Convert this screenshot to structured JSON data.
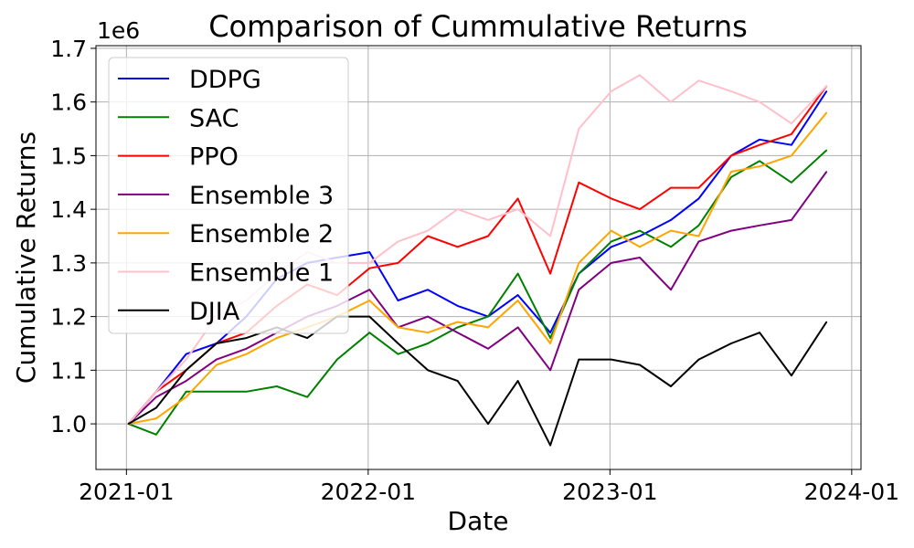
{
  "chart_data": {
    "type": "line",
    "title": "Comparison of Cummulative Returns",
    "xlabel": "Date",
    "ylabel": "Cumulative Returns",
    "y_offset_label": "1e6",
    "x_ticks": [
      "2021-01",
      "2022-01",
      "2023-01",
      "2024-01"
    ],
    "y_ticks": [
      "1.0",
      "1.1",
      "1.2",
      "1.3",
      "1.4",
      "1.5",
      "1.6",
      "1.7"
    ],
    "x_range": [
      "2020-11-16",
      "2024-01-15"
    ],
    "ylim": [
      0.915,
      1.705
    ],
    "y_multiplier": 1000000,
    "grid": true,
    "legend_position": "upper-left",
    "x": [
      "2021-01-04",
      "2021-02-15",
      "2021-04-01",
      "2021-05-17",
      "2021-07-01",
      "2021-08-16",
      "2021-10-01",
      "2021-11-15",
      "2022-01-03",
      "2022-02-15",
      "2022-04-01",
      "2022-05-16",
      "2022-07-01",
      "2022-08-15",
      "2022-10-03",
      "2022-11-15",
      "2023-01-03",
      "2023-02-15",
      "2023-04-03",
      "2023-05-15",
      "2023-07-03",
      "2023-08-15",
      "2023-10-02",
      "2023-11-24"
    ],
    "series": [
      {
        "name": "DDPG",
        "color": "#0000ff",
        "values": [
          1.0,
          1.06,
          1.13,
          1.15,
          1.2,
          1.27,
          1.3,
          1.31,
          1.32,
          1.23,
          1.25,
          1.22,
          1.2,
          1.24,
          1.17,
          1.28,
          1.33,
          1.35,
          1.38,
          1.42,
          1.5,
          1.53,
          1.52,
          1.62
        ]
      },
      {
        "name": "SAC",
        "color": "#008000",
        "values": [
          1.0,
          0.98,
          1.06,
          1.06,
          1.06,
          1.07,
          1.05,
          1.12,
          1.17,
          1.13,
          1.15,
          1.18,
          1.2,
          1.28,
          1.16,
          1.28,
          1.34,
          1.36,
          1.33,
          1.37,
          1.46,
          1.49,
          1.45,
          1.51
        ]
      },
      {
        "name": "PPO",
        "color": "#ff0000",
        "values": [
          1.0,
          1.06,
          1.1,
          1.15,
          1.17,
          1.22,
          1.26,
          1.24,
          1.29,
          1.3,
          1.35,
          1.33,
          1.35,
          1.42,
          1.28,
          1.45,
          1.42,
          1.4,
          1.44,
          1.44,
          1.5,
          1.52,
          1.54,
          1.63
        ]
      },
      {
        "name": "Ensemble 3",
        "color": "#800080",
        "values": [
          1.0,
          1.05,
          1.08,
          1.12,
          1.14,
          1.17,
          1.2,
          1.22,
          1.25,
          1.18,
          1.2,
          1.17,
          1.14,
          1.18,
          1.1,
          1.25,
          1.3,
          1.31,
          1.25,
          1.34,
          1.36,
          1.37,
          1.38,
          1.47
        ]
      },
      {
        "name": "Ensemble 2",
        "color": "#ffa500",
        "values": [
          1.0,
          1.01,
          1.05,
          1.11,
          1.13,
          1.16,
          1.18,
          1.2,
          1.23,
          1.18,
          1.17,
          1.19,
          1.18,
          1.23,
          1.15,
          1.3,
          1.36,
          1.33,
          1.36,
          1.35,
          1.47,
          1.48,
          1.5,
          1.58
        ]
      },
      {
        "name": "Ensemble 1",
        "color": "#ffc0cb",
        "values": [
          1.0,
          1.06,
          1.12,
          1.2,
          1.23,
          1.28,
          1.32,
          1.3,
          1.3,
          1.34,
          1.36,
          1.4,
          1.38,
          1.4,
          1.35,
          1.55,
          1.62,
          1.65,
          1.6,
          1.64,
          1.62,
          1.6,
          1.56,
          1.63
        ]
      },
      {
        "name": "DJIA",
        "color": "#000000",
        "values": [
          1.0,
          1.03,
          1.1,
          1.15,
          1.16,
          1.18,
          1.16,
          1.2,
          1.2,
          1.15,
          1.1,
          1.08,
          1.0,
          1.08,
          0.96,
          1.12,
          1.12,
          1.11,
          1.07,
          1.12,
          1.15,
          1.17,
          1.09,
          1.19
        ]
      }
    ]
  }
}
